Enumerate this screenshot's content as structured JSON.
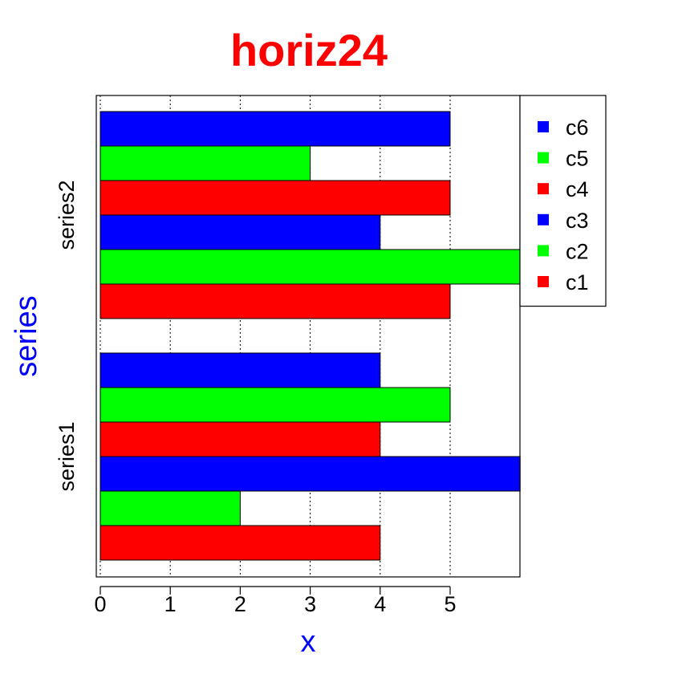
{
  "chart_data": {
    "type": "bar",
    "orientation": "horizontal",
    "grouping": "grouped",
    "title": "horiz24",
    "xlabel": "x",
    "ylabel": "series",
    "categories": [
      "series1",
      "series2"
    ],
    "series": [
      {
        "name": "c1",
        "values": [
          4,
          5
        ],
        "color": "#ff0000"
      },
      {
        "name": "c2",
        "values": [
          2,
          6
        ],
        "color": "#00ff00"
      },
      {
        "name": "c3",
        "values": [
          6,
          4
        ],
        "color": "#0000ff"
      },
      {
        "name": "c4",
        "values": [
          4,
          5
        ],
        "color": "#ff0000"
      },
      {
        "name": "c5",
        "values": [
          5,
          3
        ],
        "color": "#00ff00"
      },
      {
        "name": "c6",
        "values": [
          4,
          5
        ],
        "color": "#0000ff"
      }
    ],
    "xlim": [
      0,
      6
    ],
    "xticks": [
      "0",
      "1",
      "2",
      "3",
      "4",
      "5"
    ],
    "grid": "vertical dotted",
    "legend": {
      "placement": "top-right",
      "entries": [
        "c6",
        "c5",
        "c4",
        "c3",
        "c2",
        "c1"
      ]
    },
    "colors": {
      "title": "#ff0000",
      "axis_labels": "#0000ff"
    }
  }
}
